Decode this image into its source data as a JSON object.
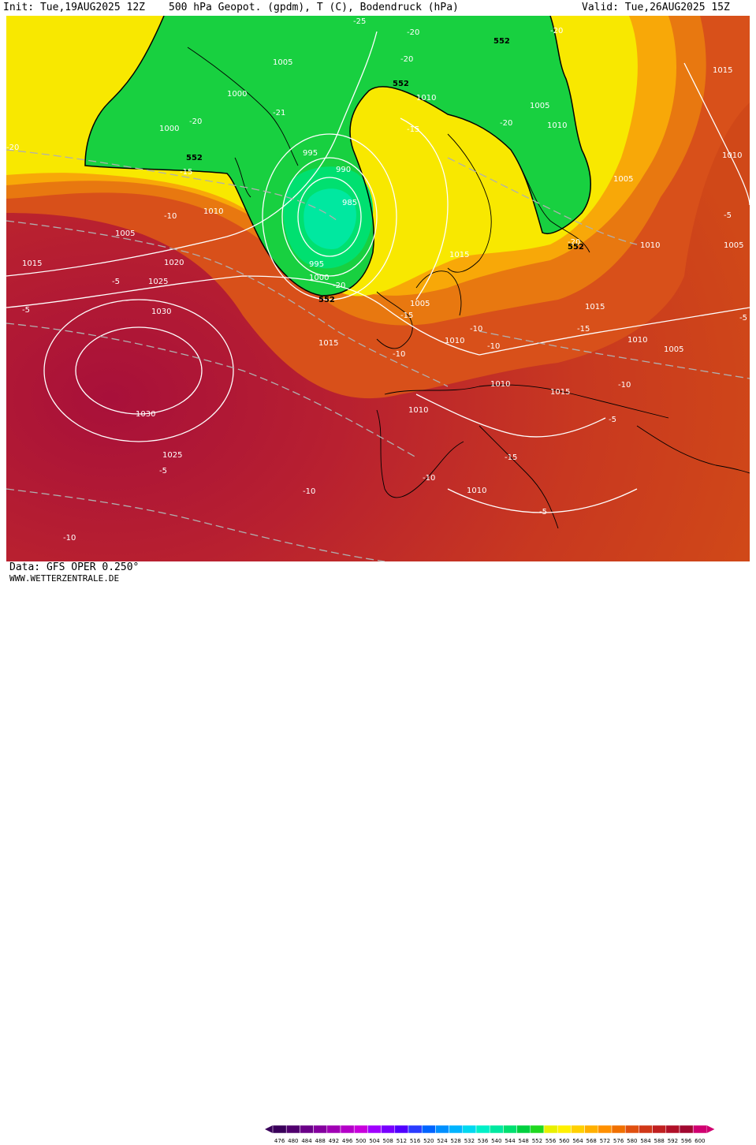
{
  "header": {
    "init": "Init: Tue,19AUG2025 12Z",
    "product": "500 hPa Geopot. (gpdm), T (C), Bodendruck (hPa)",
    "valid": "Valid: Tue,26AUG2025 15Z"
  },
  "footer": {
    "data_source": "Data: GFS OPER 0.250°",
    "website": "WWW.WETTERZENTRALE.DE"
  },
  "legend": {
    "ticks": [
      "476",
      "480",
      "484",
      "488",
      "492",
      "496",
      "500",
      "504",
      "508",
      "512",
      "516",
      "520",
      "524",
      "528",
      "532",
      "536",
      "540",
      "544",
      "548",
      "552",
      "556",
      "560",
      "564",
      "568",
      "572",
      "576",
      "580",
      "584",
      "588",
      "592",
      "596",
      "600"
    ],
    "colors": [
      "#3a005a",
      "#50006e",
      "#6a0088",
      "#84009e",
      "#a000b4",
      "#b400c8",
      "#c800dc",
      "#a000ff",
      "#7800ff",
      "#5000ff",
      "#2a3cff",
      "#0064ff",
      "#0090ff",
      "#00b4ff",
      "#00d8f0",
      "#00f0c8",
      "#00e8a0",
      "#00e070",
      "#00d040",
      "#20d820",
      "#e8f000",
      "#fff000",
      "#ffd000",
      "#ffb000",
      "#ff9000",
      "#f07000",
      "#e05010",
      "#d03818",
      "#c02020",
      "#b01028",
      "#a00830",
      "#d00070"
    ]
  },
  "map_labels": {
    "isobars": [
      "1000",
      "1005",
      "1010",
      "1005",
      "1000",
      "995",
      "990",
      "985",
      "995",
      "1000",
      "1010",
      "1005",
      "1010",
      "1005",
      "1010",
      "1010",
      "1005",
      "1015",
      "1020",
      "1025",
      "1030",
      "1030",
      "1025",
      "1015",
      "1015",
      "1010",
      "1010",
      "1015",
      "1005",
      "1015",
      "1015",
      "1010",
      "1010",
      "1005",
      "1010",
      "1010",
      "1015",
      "1015",
      "1010",
      "1010",
      "1005",
      "1010",
      "1015",
      "1005",
      "1015"
    ],
    "temperatures": [
      "-25",
      "-20",
      "-20",
      "-20",
      "-20",
      "-20",
      "-21",
      "-20",
      "-20",
      "-15",
      "-15",
      "-20",
      "-15",
      "-10",
      "-10",
      "-5",
      "-5",
      "-15",
      "-10",
      "-10",
      "-10",
      "-15",
      "-10",
      "-10",
      "-5",
      "-5",
      "-10",
      "-10",
      "-5",
      "-5",
      "-5",
      "-5",
      "-5",
      "-5"
    ],
    "geopotential": [
      "552",
      "552",
      "552",
      "552",
      "552"
    ]
  }
}
